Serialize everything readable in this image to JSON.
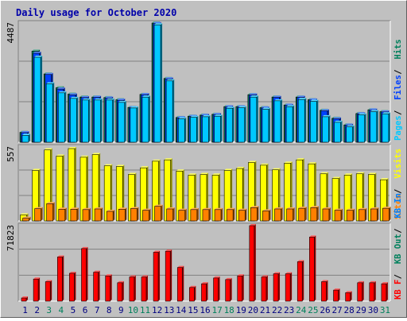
{
  "colors": {
    "hits": "#00805c",
    "files": "#0040ff",
    "pages": "#00c8ff",
    "visits": "#ffff00",
    "sites": "#ff8000",
    "kb_in": "#0080ff",
    "kb_out": "#00805c",
    "kb_f": "#ff0000",
    "title": "#0000aa",
    "weekend": "#00805c",
    "weekday": "#000080"
  },
  "chart_data": [
    {
      "type": "bar",
      "title": "Daily usage for October 2020",
      "ymax_label": "4487",
      "ylim": [
        0,
        4487
      ],
      "legend_right": [
        "Pages",
        "Files",
        "Hits"
      ],
      "categories": [
        "1",
        "2",
        "3",
        "4",
        "5",
        "6",
        "7",
        "8",
        "9",
        "10",
        "11",
        "12",
        "13",
        "14",
        "15",
        "16",
        "17",
        "18",
        "19",
        "20",
        "21",
        "22",
        "23",
        "24",
        "25",
        "26",
        "27",
        "28",
        "29",
        "30",
        "31"
      ],
      "weekend_days": [
        "3",
        "4",
        "10",
        "11",
        "17",
        "18",
        "24",
        "25",
        "31"
      ],
      "series": [
        {
          "name": "Hits",
          "values": [
            370,
            3430,
            2570,
            2050,
            1810,
            1700,
            1700,
            1680,
            1600,
            1310,
            1800,
            4487,
            2400,
            930,
            980,
            1020,
            1050,
            1340,
            1340,
            1790,
            1300,
            1700,
            1400,
            1700,
            1600,
            1200,
            900,
            650,
            1080,
            1220,
            1150
          ]
        },
        {
          "name": "Files",
          "values": [
            360,
            3350,
            2550,
            2000,
            1780,
            1680,
            1690,
            1660,
            1580,
            1300,
            1790,
            4470,
            2380,
            920,
            970,
            1010,
            1040,
            1330,
            1330,
            1780,
            1290,
            1690,
            1390,
            1690,
            1590,
            1180,
            880,
            640,
            1070,
            1210,
            1140
          ]
        },
        {
          "name": "Pages",
          "values": [
            260,
            3200,
            2200,
            1860,
            1650,
            1590,
            1590,
            1590,
            1500,
            1290,
            1700,
            4420,
            2310,
            880,
            940,
            960,
            980,
            1280,
            1300,
            1700,
            1240,
            1560,
            1340,
            1610,
            1540,
            960,
            750,
            580,
            1030,
            1150,
            1070
          ]
        }
      ]
    },
    {
      "type": "bar",
      "ymax_label": "557",
      "ylim": [
        0,
        557
      ],
      "legend_right": [
        "Sites",
        "Visits"
      ],
      "categories": [
        "1",
        "2",
        "3",
        "4",
        "5",
        "6",
        "7",
        "8",
        "9",
        "10",
        "11",
        "12",
        "13",
        "14",
        "15",
        "16",
        "17",
        "18",
        "19",
        "20",
        "21",
        "22",
        "23",
        "24",
        "25",
        "26",
        "27",
        "28",
        "29",
        "30",
        "31"
      ],
      "series": [
        {
          "name": "Visits",
          "values": [
            45,
            380,
            535,
            488,
            545,
            480,
            500,
            415,
            410,
            350,
            400,
            450,
            460,
            375,
            345,
            350,
            345,
            380,
            395,
            440,
            420,
            385,
            435,
            460,
            430,
            355,
            320,
            345,
            355,
            350,
            310
          ]
        },
        {
          "name": "Sites",
          "values": [
            20,
            92,
            130,
            88,
            88,
            85,
            90,
            72,
            88,
            93,
            80,
            110,
            90,
            80,
            85,
            85,
            85,
            85,
            80,
            100,
            75,
            90,
            90,
            95,
            100,
            90,
            80,
            80,
            85,
            90,
            95
          ]
        }
      ]
    },
    {
      "type": "bar",
      "ymax_label": "71823",
      "ylim": [
        0,
        71823
      ],
      "legend_right": [
        "KB F",
        "KB Out",
        "KB In"
      ],
      "categories": [
        "1",
        "2",
        "3",
        "4",
        "5",
        "6",
        "7",
        "8",
        "9",
        "10",
        "11",
        "12",
        "13",
        "14",
        "15",
        "16",
        "17",
        "18",
        "19",
        "20",
        "21",
        "22",
        "23",
        "24",
        "25",
        "26",
        "27",
        "28",
        "29",
        "30",
        "31"
      ],
      "series": [
        {
          "name": "KB F",
          "values": [
            3000,
            21000,
            18500,
            42000,
            26500,
            50000,
            27500,
            24000,
            17500,
            23000,
            23000,
            46500,
            47500,
            32000,
            13000,
            16500,
            22000,
            20500,
            24000,
            71823,
            23000,
            26000,
            26000,
            37500,
            61000,
            18500,
            10500,
            8000,
            17500,
            17500,
            16500
          ]
        }
      ]
    }
  ]
}
